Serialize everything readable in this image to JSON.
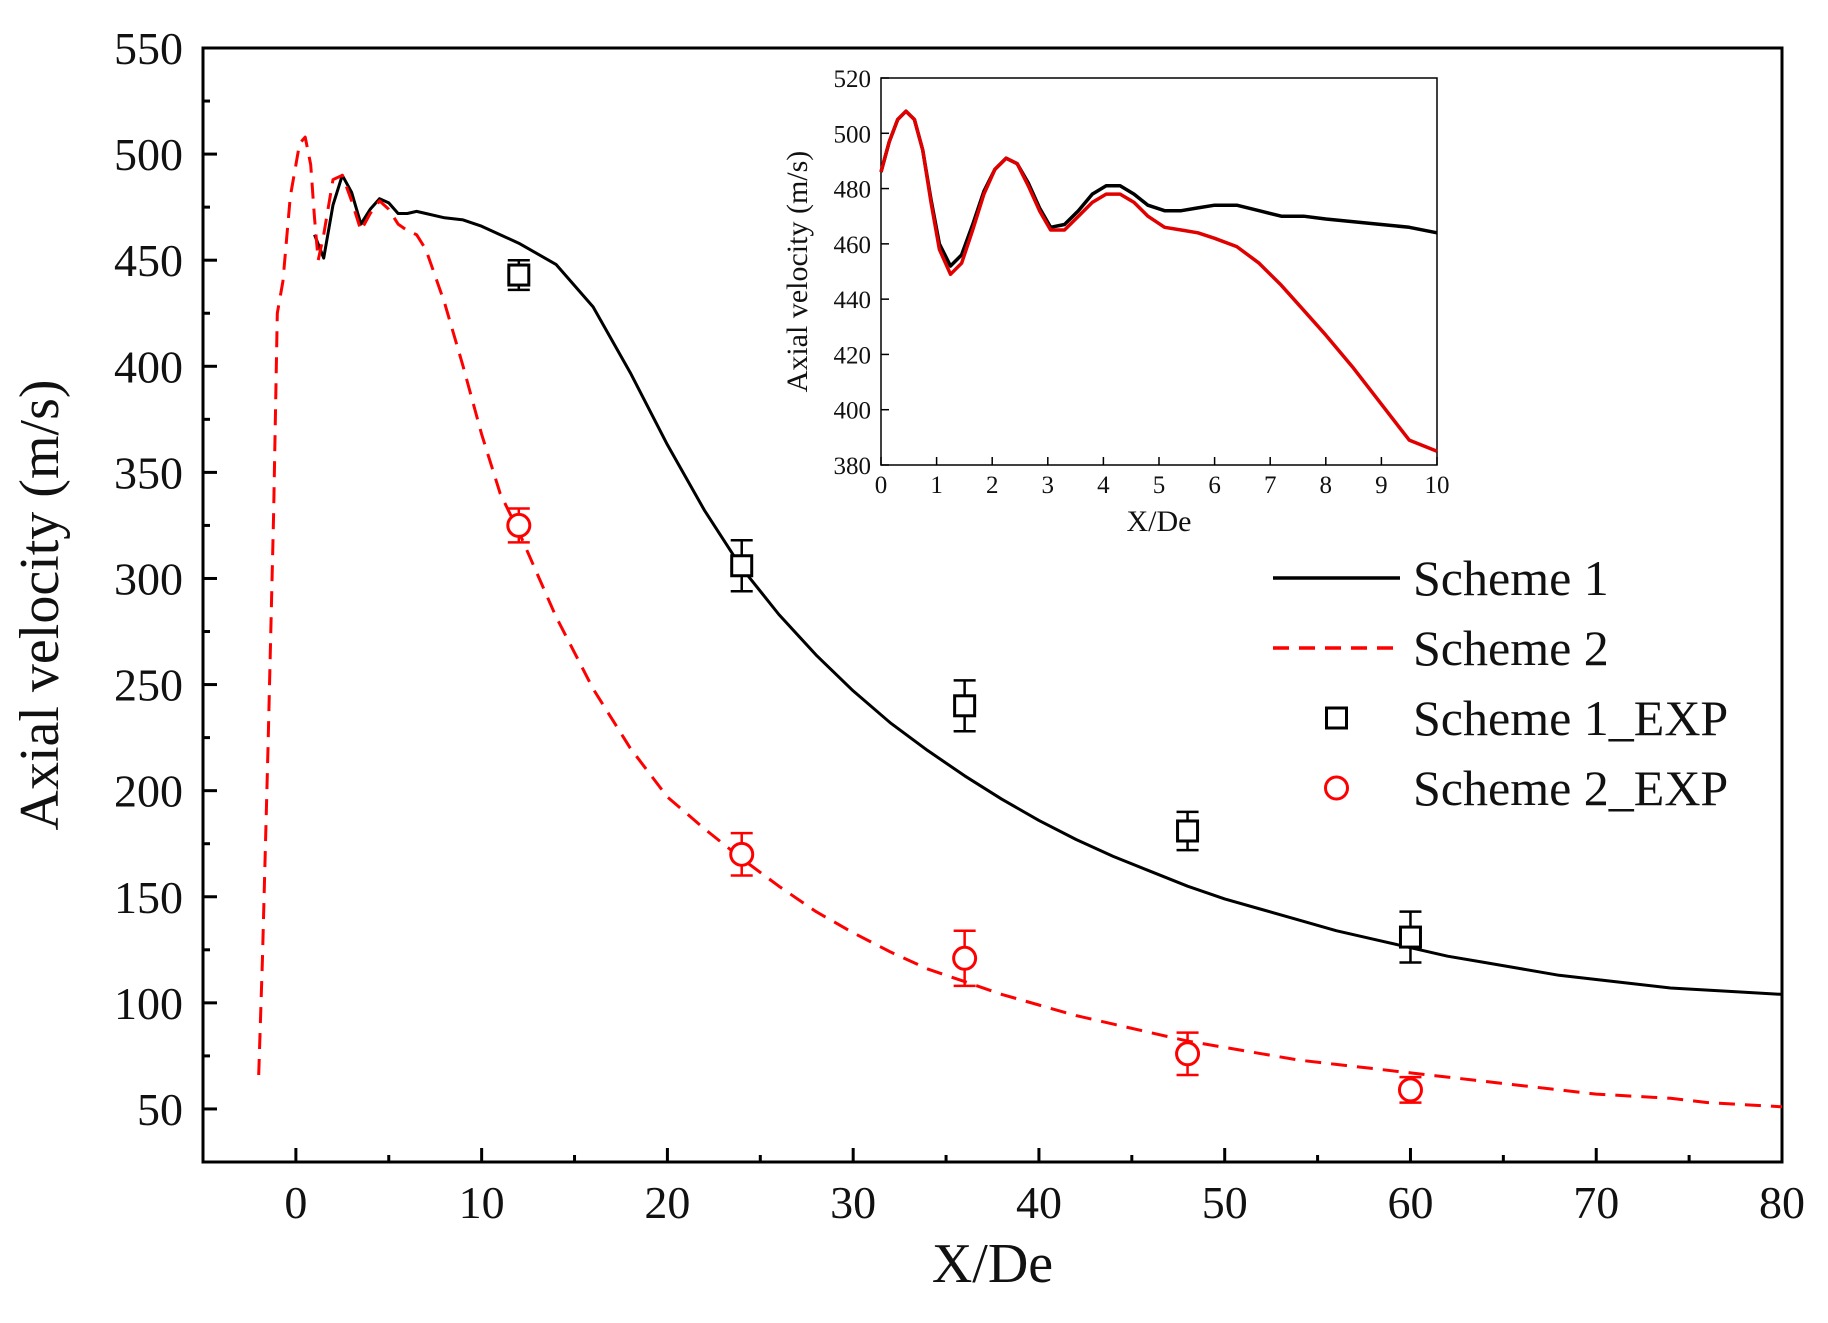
{
  "chart_data": [
    {
      "type": "line",
      "title": "",
      "xlabel": "X/De",
      "ylabel": "Axial velocity (m/s)",
      "xlim": [
        -5,
        80
      ],
      "ylim": [
        25,
        550
      ],
      "xticks": [
        0,
        10,
        20,
        30,
        40,
        50,
        60,
        70,
        80
      ],
      "yticks": [
        50,
        100,
        150,
        200,
        250,
        300,
        350,
        400,
        450,
        500,
        550
      ],
      "grid": false,
      "legend_position": "right",
      "series": [
        {
          "name": "Scheme 1",
          "color": "#000000",
          "style": "solid",
          "x": [
            1.0,
            1.5,
            2.0,
            2.5,
            3.0,
            3.5,
            4.0,
            4.5,
            5.0,
            5.5,
            6.0,
            6.5,
            7,
            8,
            9,
            10,
            11,
            12,
            14,
            16,
            18,
            20,
            22,
            24,
            26,
            28,
            30,
            32,
            34,
            36,
            38,
            40,
            42,
            44,
            46,
            48,
            50,
            52,
            54,
            56,
            58,
            60,
            62,
            64,
            66,
            68,
            70,
            72,
            74,
            76,
            78,
            80
          ],
          "y": [
            462,
            451,
            476,
            490,
            482,
            467,
            474,
            479,
            477,
            472,
            472,
            473,
            472,
            470,
            469,
            466,
            462,
            458,
            448,
            428,
            397,
            363,
            332,
            305,
            283,
            264,
            247,
            232,
            219,
            207,
            196,
            186,
            177,
            169,
            162,
            155,
            149,
            144,
            139,
            134,
            130,
            126,
            122,
            119,
            116,
            113,
            111,
            109,
            107,
            106,
            105,
            104
          ]
        },
        {
          "name": "Scheme 2",
          "color": "#ff0000",
          "style": "dashed",
          "x": [
            -2.0,
            -1.8,
            -1.5,
            -1.2,
            -1.0,
            -0.7,
            -0.5,
            -0.3,
            0.0,
            0.2,
            0.5,
            0.8,
            1.0,
            1.2,
            1.5,
            2.0,
            2.5,
            3.0,
            3.5,
            4.0,
            4.5,
            5.0,
            5.5,
            6.0,
            6.5,
            7.0,
            8,
            9,
            10,
            11,
            12,
            14,
            16,
            18,
            20,
            22,
            24,
            26,
            28,
            30,
            32,
            34,
            36,
            38,
            40,
            42,
            44,
            46,
            48,
            50,
            52,
            54,
            56,
            58,
            60,
            62,
            64,
            66,
            68,
            70,
            72,
            74,
            76,
            78,
            80
          ],
          "y": [
            66,
            120,
            220,
            330,
            425,
            440,
            460,
            480,
            495,
            505,
            508,
            495,
            470,
            450,
            462,
            488,
            490,
            478,
            464,
            472,
            478,
            474,
            467,
            464,
            462,
            455,
            430,
            400,
            368,
            340,
            322,
            282,
            248,
            220,
            197,
            182,
            168,
            155,
            143,
            133,
            124,
            116,
            110,
            104,
            99,
            94,
            90,
            86,
            82,
            79,
            76,
            73,
            71,
            69,
            67,
            65,
            63,
            61,
            59,
            57,
            56,
            55,
            53,
            52,
            51
          ]
        },
        {
          "name": "Scheme 1_EXP",
          "color": "#000000",
          "marker": "square",
          "x": [
            12,
            24,
            36,
            48,
            60
          ],
          "y": [
            443,
            306,
            240,
            181,
            131
          ],
          "error": [
            7,
            12,
            12,
            9,
            12
          ]
        },
        {
          "name": "Scheme 2_EXP",
          "color": "#ff0000",
          "marker": "circle",
          "x": [
            12,
            24,
            36,
            48,
            60
          ],
          "y": [
            325,
            170,
            121,
            76,
            59
          ],
          "error": [
            8,
            10,
            13,
            10,
            6
          ]
        }
      ]
    },
    {
      "type": "line",
      "title": "",
      "xlabel": "X/De",
      "ylabel": "Axial velocity (m/s)",
      "xlim": [
        0,
        10
      ],
      "ylim": [
        380,
        520
      ],
      "xticks": [
        0,
        1,
        2,
        3,
        4,
        5,
        6,
        7,
        8,
        9,
        10
      ],
      "yticks": [
        380,
        400,
        420,
        440,
        460,
        480,
        500,
        520
      ],
      "grid": false,
      "inset": true,
      "series": [
        {
          "name": "Scheme 1",
          "color": "#000000",
          "x": [
            0.0,
            0.15,
            0.3,
            0.45,
            0.6,
            0.75,
            0.9,
            1.05,
            1.25,
            1.45,
            1.65,
            1.85,
            2.05,
            2.25,
            2.45,
            2.65,
            2.85,
            3.05,
            3.3,
            3.55,
            3.8,
            4.05,
            4.3,
            4.55,
            4.8,
            5.1,
            5.4,
            5.7,
            6.0,
            6.4,
            6.8,
            7.2,
            7.6,
            8.0,
            8.5,
            9.0,
            9.5,
            10.0
          ],
          "y": [
            486,
            497,
            505,
            508,
            505,
            494,
            476,
            460,
            452,
            456,
            467,
            479,
            487,
            491,
            489,
            482,
            473,
            466,
            467,
            472,
            478,
            481,
            481,
            478,
            474,
            472,
            472,
            473,
            474,
            474,
            472,
            470,
            470,
            469,
            468,
            467,
            466,
            464
          ]
        },
        {
          "name": "Scheme 2",
          "color": "#e00000",
          "x": [
            0.0,
            0.15,
            0.3,
            0.45,
            0.6,
            0.75,
            0.9,
            1.05,
            1.25,
            1.45,
            1.65,
            1.85,
            2.05,
            2.25,
            2.45,
            2.65,
            2.85,
            3.05,
            3.3,
            3.55,
            3.8,
            4.05,
            4.3,
            4.55,
            4.8,
            5.1,
            5.4,
            5.7,
            6.0,
            6.4,
            6.8,
            7.2,
            7.6,
            8.0,
            8.5,
            9.0,
            9.5,
            10.0
          ],
          "y": [
            486,
            497,
            505,
            508,
            505,
            494,
            475,
            458,
            449,
            453,
            465,
            478,
            487,
            491,
            489,
            481,
            472,
            465,
            465,
            470,
            475,
            478,
            478,
            475,
            470,
            466,
            465,
            464,
            462,
            459,
            453,
            445,
            436,
            427,
            415,
            402,
            389,
            385
          ]
        }
      ]
    }
  ],
  "legend": [
    {
      "label": "Scheme 1",
      "kind": "line",
      "color": "#000000",
      "dash": false
    },
    {
      "label": "Scheme 2",
      "kind": "line",
      "color": "#ff0000",
      "dash": true
    },
    {
      "label": "Scheme 1_EXP",
      "kind": "square",
      "color": "#000000"
    },
    {
      "label": "Scheme 2_EXP",
      "kind": "circle",
      "color": "#ff0000"
    }
  ]
}
